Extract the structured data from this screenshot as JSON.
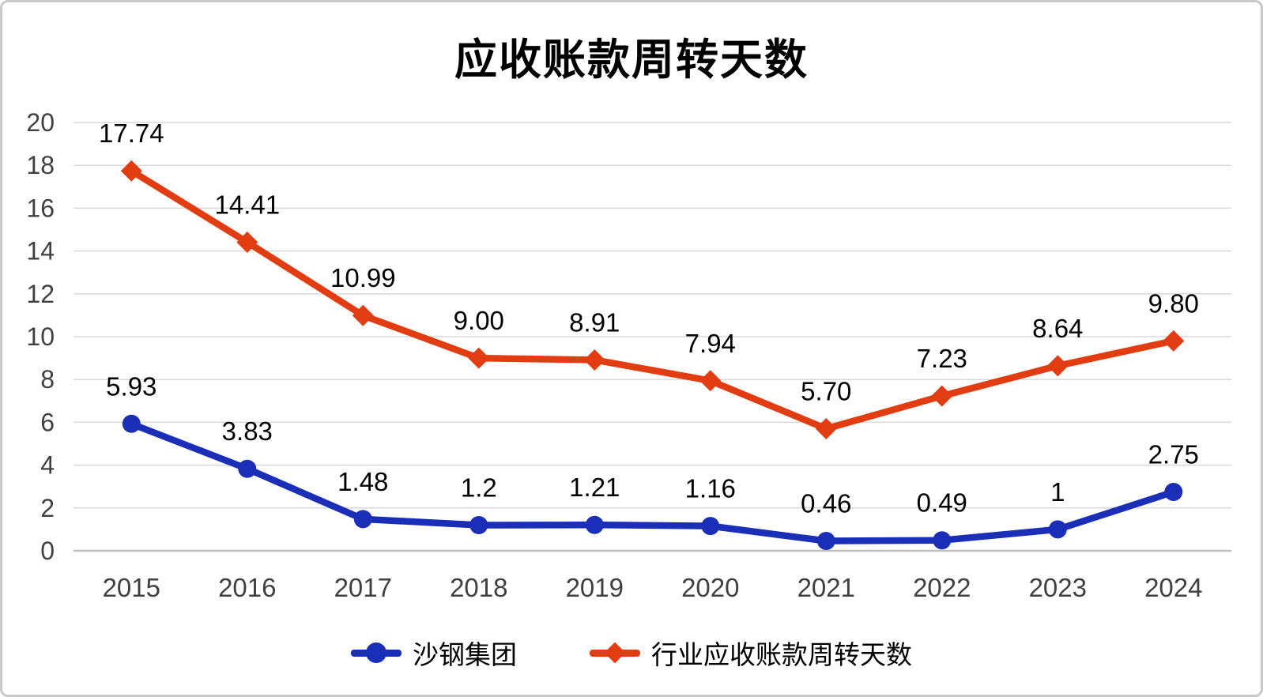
{
  "chart_data": {
    "type": "line",
    "title": "应收账款周转天数",
    "categories": [
      "2015",
      "2016",
      "2017",
      "2018",
      "2019",
      "2020",
      "2021",
      "2022",
      "2023",
      "2024"
    ],
    "series": [
      {
        "name": "沙钢集团",
        "color": "#1A2EB8",
        "marker": "circle",
        "values": [
          5.93,
          3.83,
          1.48,
          1.2,
          1.21,
          1.16,
          0.46,
          0.49,
          1,
          2.75
        ],
        "labels": [
          "5.93",
          "3.83",
          "1.48",
          "1.2",
          "1.21",
          "1.16",
          "0.46",
          "0.49",
          "1",
          "2.75"
        ]
      },
      {
        "name": "行业应收账款周转天数",
        "color": "#E23D12",
        "marker": "diamond",
        "values": [
          17.74,
          14.41,
          10.99,
          9.0,
          8.91,
          7.94,
          5.7,
          7.23,
          8.64,
          9.8
        ],
        "labels": [
          "17.74",
          "14.41",
          "10.99",
          "9.00",
          "8.91",
          "7.94",
          "5.70",
          "7.23",
          "8.64",
          "9.80"
        ]
      }
    ],
    "xlabel": "",
    "ylabel": "",
    "ylim": [
      0,
      20
    ],
    "ytick_step": 2,
    "yticks": [
      0,
      2,
      4,
      6,
      8,
      10,
      12,
      14,
      16,
      18,
      20
    ],
    "grid": true,
    "legend_position": "bottom",
    "colors": {
      "gridline": "#d9d9d9",
      "zero_line": "#bfbfbf",
      "axis_text": "#404040",
      "label_text": "#000000",
      "frame_border": "#c9c9c9"
    }
  }
}
